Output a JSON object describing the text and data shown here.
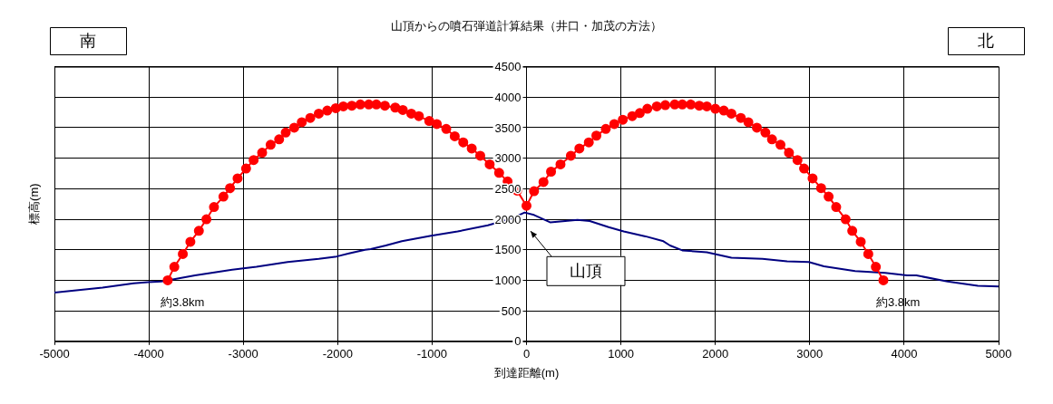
{
  "chart_data": {
    "type": "line",
    "title": "山頂からの噴石弾道計算結果（井口・加茂の方法）",
    "xlabel": "到達距離(m)",
    "ylabel": "標高(m)",
    "xlim": [
      -5000,
      5000
    ],
    "xticks": [
      -5000,
      -4000,
      -3000,
      -2000,
      -1000,
      0,
      1000,
      2000,
      3000,
      4000,
      5000
    ],
    "ylim": [
      0,
      4500
    ],
    "yticks": [
      0,
      500,
      1000,
      1500,
      2000,
      2500,
      3000,
      3500,
      4000,
      4500
    ],
    "grid": true,
    "legend": false,
    "line_style": "solid",
    "series": [
      {
        "color": "#ff0000",
        "marker": "circle",
        "x": [
          -3800,
          -3730,
          -3640,
          -3560,
          -3470,
          -3390,
          -3310,
          -3210,
          -3140,
          -3060,
          -2970,
          -2890,
          -2800,
          -2710,
          -2620,
          -2550,
          -2460,
          -2380,
          -2290,
          -2200,
          -2110,
          -2020,
          -1940,
          -1850,
          -1760,
          -1670,
          -1590,
          -1500,
          -1390,
          -1310,
          -1220,
          -1140,
          -1030,
          -950,
          -850,
          -760,
          -670,
          -580,
          -490,
          -390,
          -290,
          -200,
          -100,
          0,
          80,
          180,
          260,
          360,
          470,
          560,
          660,
          740,
          840,
          930,
          1020,
          1120,
          1200,
          1280,
          1380,
          1470,
          1570,
          1650,
          1740,
          1830,
          1910,
          2000,
          2090,
          2170,
          2270,
          2350,
          2440,
          2530,
          2600,
          2690,
          2780,
          2870,
          2940,
          3030,
          3120,
          3200,
          3280,
          3380,
          3450,
          3540,
          3620,
          3700,
          3780
        ],
        "values": [
          1000,
          1220,
          1430,
          1630,
          1810,
          2000,
          2200,
          2370,
          2510,
          2670,
          2830,
          2970,
          3090,
          3220,
          3310,
          3420,
          3500,
          3590,
          3660,
          3730,
          3780,
          3820,
          3850,
          3860,
          3880,
          3880,
          3880,
          3860,
          3830,
          3790,
          3730,
          3690,
          3610,
          3560,
          3480,
          3360,
          3260,
          3160,
          3040,
          2900,
          2760,
          2620,
          2470,
          2220,
          2460,
          2610,
          2780,
          2900,
          3040,
          3160,
          3260,
          3370,
          3480,
          3560,
          3630,
          3690,
          3740,
          3810,
          3850,
          3870,
          3880,
          3880,
          3880,
          3860,
          3850,
          3810,
          3780,
          3730,
          3660,
          3590,
          3500,
          3420,
          3310,
          3220,
          3090,
          2970,
          2830,
          2670,
          2510,
          2370,
          2200,
          2000,
          1810,
          1630,
          1430,
          1220,
          1000
        ]
      },
      {
        "color": "#000080",
        "marker": "none",
        "x": [
          -5000,
          -4490,
          -4160,
          -4010,
          -3870,
          -3800,
          -3510,
          -3180,
          -2860,
          -2530,
          -2200,
          -2010,
          -1880,
          -1710,
          -1650,
          -1490,
          -1320,
          -1010,
          -730,
          -410,
          -180,
          -20,
          80,
          250,
          410,
          540,
          670,
          870,
          1030,
          1260,
          1450,
          1520,
          1650,
          1910,
          2170,
          2500,
          2760,
          2990,
          3150,
          3480,
          3800,
          4030,
          4130,
          4460,
          4780,
          5000
        ],
        "values": [
          800,
          880,
          950,
          970,
          980,
          1000,
          1080,
          1160,
          1220,
          1300,
          1350,
          1390,
          1440,
          1500,
          1510,
          1570,
          1640,
          1730,
          1800,
          1900,
          2000,
          2110,
          2070,
          1950,
          1970,
          1990,
          1970,
          1870,
          1800,
          1720,
          1640,
          1570,
          1490,
          1460,
          1370,
          1350,
          1310,
          1300,
          1230,
          1150,
          1120,
          1080,
          1080,
          980,
          910,
          900
        ]
      }
    ],
    "annotations": [
      "南",
      "北",
      {
        "text": "約3.8km",
        "x": -3800,
        "y": 1000
      },
      {
        "text": "約3.8km",
        "x": 3780,
        "y": 1000
      },
      "山頂"
    ]
  }
}
